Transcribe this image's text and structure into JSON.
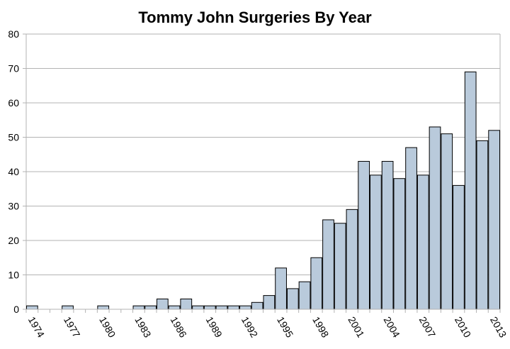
{
  "chart_data": {
    "type": "bar",
    "title": "Tommy John Surgeries By Year",
    "xlabel": "",
    "ylabel": "",
    "ylim": [
      0,
      80
    ],
    "yticks": [
      0,
      10,
      20,
      30,
      40,
      50,
      60,
      70,
      80
    ],
    "grid": true,
    "legend": "none",
    "bar_color": "#b9cadb",
    "bar_edge_color": "#000000",
    "grid_color": "#b3b3b3",
    "categories": [
      1974,
      1975,
      1976,
      1977,
      1978,
      1979,
      1980,
      1981,
      1982,
      1983,
      1984,
      1985,
      1986,
      1987,
      1988,
      1989,
      1990,
      1991,
      1992,
      1993,
      1994,
      1995,
      1996,
      1997,
      1998,
      1999,
      2000,
      2001,
      2002,
      2003,
      2004,
      2005,
      2006,
      2007,
      2008,
      2009,
      2010,
      2011,
      2012,
      2013
    ],
    "tick_labels": [
      "1974",
      "1977",
      "1980",
      "1983",
      "1986",
      "1989",
      "1992",
      "1995",
      "1998",
      "2001",
      "2004",
      "2007",
      "2010",
      "2013"
    ],
    "values": [
      1,
      0,
      0,
      1,
      0,
      0,
      1,
      0,
      0,
      1,
      1,
      3,
      1,
      3,
      1,
      1,
      1,
      1,
      1,
      2,
      4,
      12,
      6,
      8,
      15,
      26,
      25,
      29,
      43,
      39,
      43,
      38,
      47,
      39,
      53,
      51,
      36,
      69,
      49,
      52
    ]
  }
}
